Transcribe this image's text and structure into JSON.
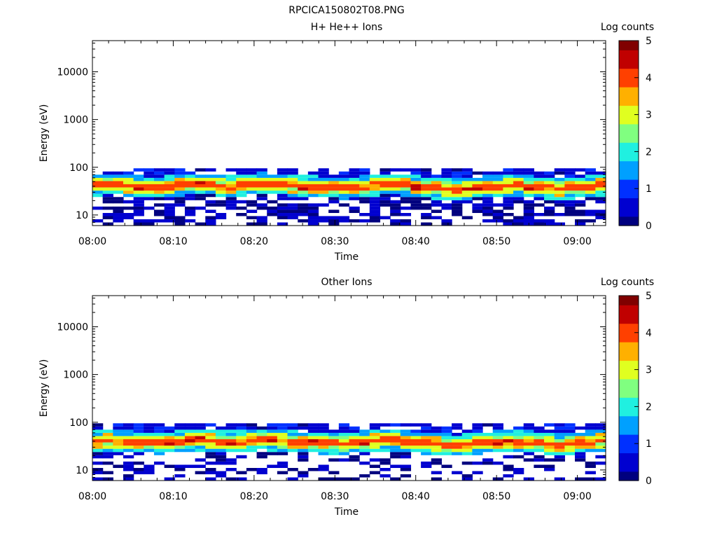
{
  "figure_title": "RPCICA150802T08.PNG",
  "colors": {
    "colormap": [
      "#00007f",
      "#0000d0",
      "#0030ff",
      "#00a0ff",
      "#20f0e0",
      "#80ff80",
      "#e0ff20",
      "#ffb000",
      "#ff4000",
      "#c00000",
      "#800000"
    ]
  },
  "chart_data": [
    {
      "type": "heatmap",
      "title": "H+ He++ Ions",
      "xlabel": "Time",
      "ylabel": "Energy (eV)",
      "x_ticks": [
        "08:00",
        "08:10",
        "08:20",
        "08:30",
        "08:40",
        "08:50",
        "09:00"
      ],
      "x_range_minutes": [
        0,
        63.5
      ],
      "y_scale": "log",
      "y_ticks": [
        10,
        100,
        1000,
        10000
      ],
      "y_ticklabels": [
        "10",
        "100",
        "1000",
        "10000"
      ],
      "ylim": [
        6,
        45000
      ],
      "colorbar": {
        "label": "Log counts",
        "range": [
          0,
          5
        ],
        "ticks": [
          "0",
          "1",
          "2",
          "3",
          "4",
          "5"
        ]
      },
      "peak_energy_ev": [
        42,
        44,
        43,
        41,
        40,
        38,
        37,
        39,
        42,
        44,
        45,
        43,
        41,
        40,
        42,
        44,
        46,
        45,
        43,
        41,
        40,
        39,
        38,
        37,
        36,
        38,
        40,
        42,
        43,
        44,
        42,
        40,
        38,
        36,
        35,
        34,
        35,
        37,
        39,
        40,
        41,
        42,
        40,
        38,
        36,
        35,
        36,
        38,
        40,
        42
      ],
      "channels_ev": [
        6.5,
        7.5,
        8.8,
        10.2,
        11.9,
        13.9,
        16.2,
        18.9,
        22,
        25.7,
        30,
        35,
        40.8,
        47.6,
        55.5,
        64.7,
        75.5,
        88
      ],
      "rows_log_counts": [
        [
          "0",
          "0",
          "0",
          "0",
          "-",
          "0",
          "0",
          "-",
          "0",
          "0",
          "0",
          "0",
          "0",
          "-",
          "0",
          "0",
          "0",
          "-"
        ],
        [
          "0",
          "1",
          "0",
          "0",
          "0",
          "-",
          "0",
          "0",
          "1",
          "1",
          "2",
          "3",
          "3",
          "2",
          "1",
          "1",
          "0",
          "0"
        ],
        [
          "-",
          "0",
          "-",
          "0",
          "1",
          "0",
          "1",
          "2",
          "2",
          "3",
          "3",
          "4",
          "3",
          "3",
          "2",
          "1",
          "1",
          "0"
        ],
        [
          "0",
          "-",
          "0",
          "0",
          "0",
          "0",
          "0",
          "1",
          "2",
          "3",
          "4",
          "4",
          "3",
          "2",
          "2",
          "1",
          "0",
          "0"
        ],
        [
          "-",
          "0",
          "-",
          "0",
          "0",
          "1",
          "0",
          "1",
          "2",
          "3",
          "3",
          "4",
          "3",
          "2",
          "1",
          "1",
          "0",
          "-"
        ],
        [
          "0",
          "0",
          "0",
          "-",
          "0",
          "0",
          "1",
          "2",
          "2",
          "3",
          "4",
          "3",
          "3",
          "2",
          "1",
          "0",
          "0",
          "0"
        ]
      ]
    },
    {
      "type": "heatmap",
      "title": "Other Ions",
      "xlabel": "Time",
      "ylabel": "Energy (eV)",
      "x_ticks": [
        "08:00",
        "08:10",
        "08:20",
        "08:30",
        "08:40",
        "08:50",
        "09:00"
      ],
      "x_range_minutes": [
        0,
        63.5
      ],
      "y_scale": "log",
      "y_ticks": [
        10,
        100,
        1000,
        10000
      ],
      "y_ticklabels": [
        "10",
        "100",
        "1000",
        "10000"
      ],
      "ylim": [
        6,
        45000
      ],
      "colorbar": {
        "label": "Log counts",
        "range": [
          0,
          5
        ],
        "ticks": [
          "0",
          "1",
          "2",
          "3",
          "4",
          "5"
        ]
      },
      "peak_energy_ev": [
        40,
        41,
        40,
        39,
        38,
        37,
        36,
        38,
        40,
        42,
        42,
        41,
        40,
        39,
        40,
        42,
        43,
        42,
        41,
        40,
        38,
        37,
        36,
        36,
        35,
        37,
        39,
        41,
        42,
        42,
        40,
        38,
        36,
        35,
        34,
        33,
        34,
        36,
        38,
        39,
        40,
        40,
        39,
        37,
        35,
        34,
        35,
        37,
        39,
        41
      ],
      "channels_ev": [
        6.5,
        7.5,
        8.8,
        10.2,
        11.9,
        13.9,
        16.2,
        18.9,
        22,
        25.7,
        30,
        35,
        40.8,
        47.6,
        55.5,
        64.7,
        75.5,
        88
      ],
      "rows_log_counts": [
        [
          "0",
          "0",
          "-",
          "0",
          "-",
          "0",
          "-",
          "0",
          "1",
          "1",
          "2",
          "3",
          "4",
          "3",
          "2",
          "1",
          "0",
          "0"
        ],
        [
          "-",
          "0",
          "0",
          "-",
          "0",
          "-",
          "0",
          "0",
          "1",
          "2",
          "3",
          "4",
          "3",
          "3",
          "2",
          "1",
          "1",
          "0"
        ],
        [
          "0",
          "-",
          "0",
          "-",
          "-",
          "0",
          "0",
          "0",
          "1",
          "2",
          "3",
          "3",
          "3",
          "2",
          "1",
          "0",
          "0",
          "-"
        ],
        [
          "-",
          "0",
          "-",
          "0",
          "0",
          "-",
          "0",
          "0",
          "2",
          "2",
          "3",
          "4",
          "3",
          "2",
          "1",
          "1",
          "0",
          "0"
        ]
      ]
    }
  ]
}
